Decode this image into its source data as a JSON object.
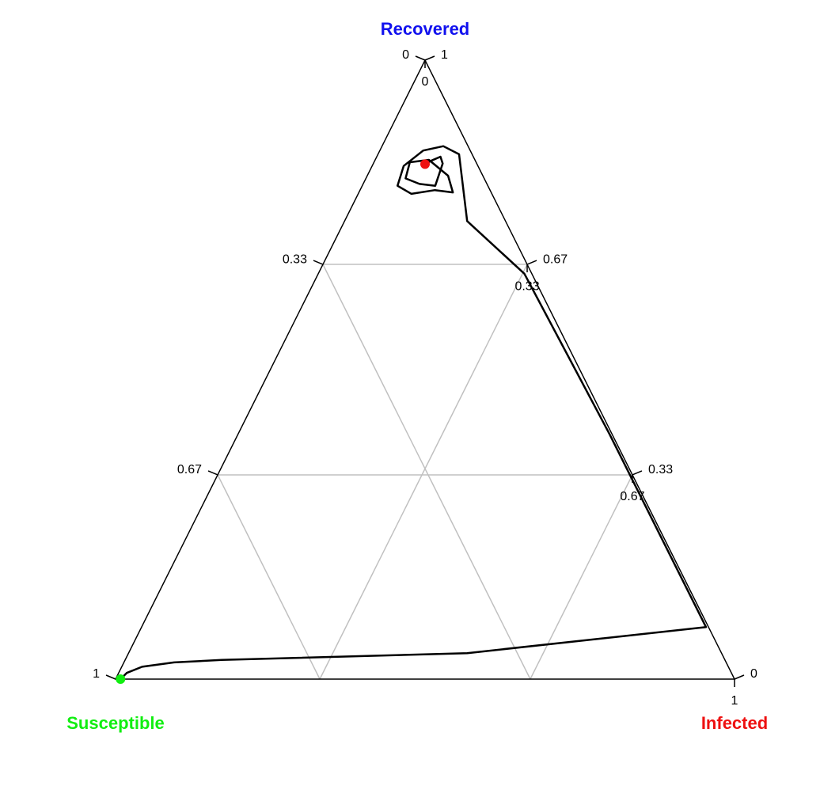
{
  "chart_data": {
    "type": "ternary",
    "axes": {
      "susceptible": {
        "label": "Susceptible",
        "color": "#11ee11"
      },
      "infected": {
        "label": "Infected",
        "color": "#ee1111"
      },
      "recovered": {
        "label": "Recovered",
        "color": "#1111ee"
      }
    },
    "ticks": [
      0,
      0.33,
      0.67,
      1
    ],
    "grid": true,
    "grid_color": "#c0c0c0",
    "trajectory": {
      "color": "#000000",
      "start_color": "#11ee11",
      "end_color": "#ee1111",
      "susceptible": [
        0.992,
        0.977,
        0.947,
        0.892,
        0.813,
        0.411,
        0.004,
        0.004,
        0.012,
        0.062,
        0.021,
        0.04,
        0.076,
        0.12,
        0.146,
        0.13,
        0.089,
        0.079,
        0.074,
        0.082,
        0.107,
        0.127,
        0.109,
        0.085,
        0.055,
        0.053,
        0.07,
        0.084
      ],
      "infected": [
        0.008,
        0.013,
        0.033,
        0.081,
        0.156,
        0.547,
        0.912,
        0.6,
        0.333,
        0.198,
        0.131,
        0.099,
        0.07,
        0.051,
        0.057,
        0.086,
        0.121,
        0.132,
        0.11,
        0.078,
        0.058,
        0.064,
        0.091,
        0.118,
        0.112,
        0.103,
        0.092,
        0.084
      ],
      "recovered": [
        0,
        0.01,
        0.02,
        0.027,
        0.031,
        0.042,
        0.084,
        0.396,
        0.655,
        0.74,
        0.848,
        0.861,
        0.854,
        0.829,
        0.797,
        0.784,
        0.79,
        0.816,
        0.844,
        0.852,
        0.835,
        0.809,
        0.8,
        0.797,
        0.833,
        0.844,
        0.838,
        0.832
      ]
    }
  }
}
